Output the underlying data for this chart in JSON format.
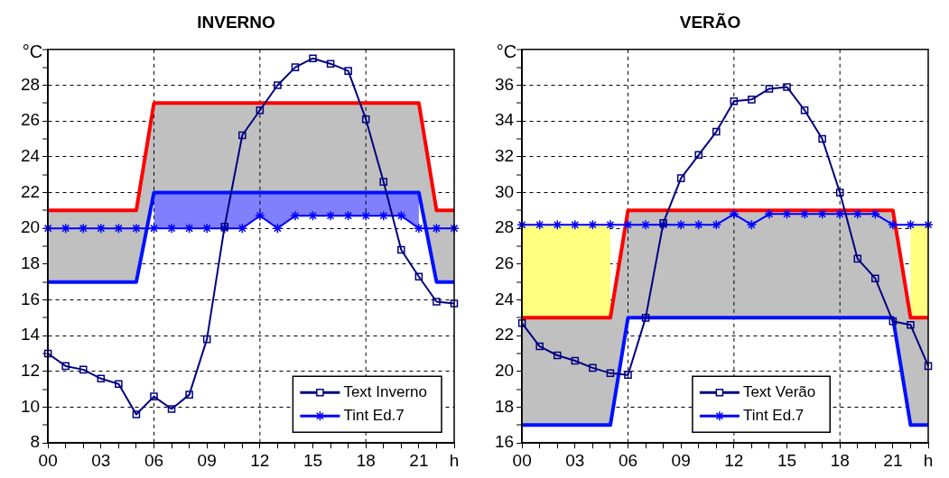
{
  "chart_data": [
    {
      "type": "line",
      "title": "INVERNO",
      "ylabel": "°C",
      "xlim": [
        0,
        23
      ],
      "ylim": [
        8,
        30
      ],
      "xticks": [
        {
          "value": 0,
          "label": "00"
        },
        {
          "value": 1,
          "label": null
        },
        {
          "value": 2,
          "label": null
        },
        {
          "value": 3,
          "label": "03"
        },
        {
          "value": 4,
          "label": null
        },
        {
          "value": 5,
          "label": null
        },
        {
          "value": 6,
          "label": "06"
        },
        {
          "value": 7,
          "label": null
        },
        {
          "value": 8,
          "label": null
        },
        {
          "value": 9,
          "label": "09"
        },
        {
          "value": 10,
          "label": null
        },
        {
          "value": 11,
          "label": null
        },
        {
          "value": 12,
          "label": "12"
        },
        {
          "value": 13,
          "label": null
        },
        {
          "value": 14,
          "label": null
        },
        {
          "value": 15,
          "label": "15"
        },
        {
          "value": 16,
          "label": null
        },
        {
          "value": 17,
          "label": null
        },
        {
          "value": 18,
          "label": "18"
        },
        {
          "value": 19,
          "label": null
        },
        {
          "value": 20,
          "label": null
        },
        {
          "value": 21,
          "label": "21"
        },
        {
          "value": 22,
          "label": null
        },
        {
          "value": 23,
          "label": "h"
        }
      ],
      "yticks": [
        8,
        {
          "value": 9,
          "label": null
        },
        10,
        {
          "value": 11,
          "label": null
        },
        12,
        {
          "value": 13,
          "label": null
        },
        14,
        {
          "value": 15,
          "label": null
        },
        16,
        {
          "value": 17,
          "label": null
        },
        18,
        {
          "value": 19,
          "label": null
        },
        20,
        {
          "value": 21,
          "label": null
        },
        22,
        {
          "value": 23,
          "label": null
        },
        24,
        {
          "value": 25,
          "label": null
        },
        26,
        {
          "value": 27,
          "label": null
        },
        28,
        {
          "value": 29,
          "label": null
        },
        {
          "value": 30,
          "label": null
        }
      ],
      "grid": "y",
      "legend": "bottom right",
      "ref_lines": [
        {
          "axis": "x",
          "value": 6,
          "color": "#000000",
          "line_style": "dashed"
        },
        {
          "axis": "x",
          "value": 12,
          "color": "#000000",
          "line_style": "dashed"
        },
        {
          "axis": "x",
          "value": 18,
          "color": "#000000",
          "line_style": "dashed"
        }
      ],
      "x": [
        0,
        1,
        2,
        3,
        4,
        5,
        6,
        7,
        8,
        9,
        10,
        11,
        12,
        13,
        14,
        15,
        16,
        17,
        18,
        19,
        20,
        21,
        22,
        23
      ],
      "series": [
        {
          "color": "#ff0000",
          "marker": "none",
          "values": [
            21,
            21,
            21,
            21,
            21,
            21,
            27,
            27,
            27,
            27,
            27,
            27,
            27,
            27,
            27,
            27,
            27,
            27,
            27,
            27,
            27,
            27,
            21,
            21
          ],
          "upper": [
            21,
            21,
            21,
            21,
            21,
            21,
            27,
            27,
            27,
            27,
            27,
            27,
            27,
            27,
            27,
            27,
            27,
            27,
            27,
            27,
            27,
            27,
            21,
            21
          ],
          "lower": [
            17,
            17,
            17,
            17,
            17,
            17,
            22,
            22,
            22,
            22,
            22,
            22,
            22,
            22,
            22,
            22,
            22,
            22,
            22,
            22,
            22,
            22,
            17,
            17
          ]
        },
        {
          "color": "#0010ff",
          "marker": "none",
          "values": [
            17,
            17,
            17,
            17,
            17,
            17,
            22,
            22,
            22,
            22,
            22,
            22,
            22,
            22,
            22,
            22,
            22,
            22,
            22,
            22,
            22,
            22,
            17,
            17
          ],
          "upper": [
            null,
            null,
            null,
            null,
            null,
            null,
            22,
            22,
            22,
            22,
            22,
            22,
            22,
            22,
            22,
            22,
            22,
            22,
            22,
            22,
            22,
            22,
            null,
            null
          ],
          "lower": [
            null,
            null,
            null,
            null,
            null,
            null,
            20,
            20,
            20,
            20,
            20,
            20,
            20.7,
            20,
            20.7,
            20.7,
            20.7,
            20.7,
            20.7,
            20.7,
            20.7,
            20,
            null,
            null
          ]
        },
        {
          "name": "Text Inverno",
          "color": "#000080",
          "marker": "square",
          "values": [
            13.0,
            12.3,
            12.1,
            11.6,
            11.3,
            9.6,
            10.6,
            9.9,
            10.7,
            13.8,
            20.1,
            25.2,
            26.6,
            28.0,
            29.0,
            29.5,
            29.2,
            28.8,
            26.1,
            22.6,
            18.8,
            17.3,
            15.9,
            15.8
          ]
        },
        {
          "name": "Tint Ed.7",
          "color": "#0000ff",
          "marker": "cross",
          "values": [
            20,
            20,
            20,
            20,
            20,
            20,
            20,
            20,
            20,
            20,
            20,
            20,
            20.7,
            20,
            20.7,
            20.7,
            20.7,
            20.7,
            20.7,
            20.7,
            20.7,
            20,
            20,
            20
          ]
        }
      ]
    },
    {
      "type": "line",
      "title": "VERÃO",
      "ylabel": "°C",
      "xlim": [
        0,
        23
      ],
      "ylim": [
        16,
        38
      ],
      "xticks": [
        {
          "value": 0,
          "label": "00"
        },
        {
          "value": 1,
          "label": null
        },
        {
          "value": 2,
          "label": null
        },
        {
          "value": 3,
          "label": "03"
        },
        {
          "value": 4,
          "label": null
        },
        {
          "value": 5,
          "label": null
        },
        {
          "value": 6,
          "label": "06"
        },
        {
          "value": 7,
          "label": null
        },
        {
          "value": 8,
          "label": null
        },
        {
          "value": 9,
          "label": "09"
        },
        {
          "value": 10,
          "label": null
        },
        {
          "value": 11,
          "label": null
        },
        {
          "value": 12,
          "label": "12"
        },
        {
          "value": 13,
          "label": null
        },
        {
          "value": 14,
          "label": null
        },
        {
          "value": 15,
          "label": "15"
        },
        {
          "value": 16,
          "label": null
        },
        {
          "value": 17,
          "label": null
        },
        {
          "value": 18,
          "label": "18"
        },
        {
          "value": 19,
          "label": null
        },
        {
          "value": 20,
          "label": null
        },
        {
          "value": 21,
          "label": "21"
        },
        {
          "value": 22,
          "label": null
        },
        {
          "value": 23,
          "label": "h"
        }
      ],
      "yticks": [
        16,
        {
          "value": 17,
          "label": null
        },
        18,
        {
          "value": 19,
          "label": null
        },
        20,
        {
          "value": 21,
          "label": null
        },
        22,
        {
          "value": 23,
          "label": null
        },
        24,
        {
          "value": 25,
          "label": null
        },
        26,
        {
          "value": 27,
          "label": null
        },
        28,
        {
          "value": 29,
          "label": null
        },
        30,
        {
          "value": 31,
          "label": null
        },
        32,
        {
          "value": 33,
          "label": null
        },
        34,
        {
          "value": 35,
          "label": null
        },
        36,
        {
          "value": 37,
          "label": null
        },
        {
          "value": 38,
          "label": null
        }
      ],
      "grid": "y",
      "legend": "bottom",
      "ref_lines": [
        {
          "axis": "x",
          "value": 6,
          "color": "#000000",
          "line_style": "dashed"
        },
        {
          "axis": "x",
          "value": 12,
          "color": "#000000",
          "line_style": "dashed"
        },
        {
          "axis": "x",
          "value": 18,
          "color": "#000000",
          "line_style": "dashed"
        }
      ],
      "x": [
        0,
        1,
        2,
        3,
        4,
        5,
        6,
        7,
        8,
        9,
        10,
        11,
        12,
        13,
        14,
        15,
        16,
        17,
        18,
        19,
        20,
        21,
        22,
        23
      ],
      "series": [
        {
          "color": "#ff0000",
          "marker": "none",
          "values": [
            23,
            23,
            23,
            23,
            23,
            23,
            29,
            29,
            29,
            29,
            29,
            29,
            29,
            29,
            29,
            29,
            29,
            29,
            29,
            29,
            29,
            29,
            23,
            23
          ],
          "upper": [
            23,
            23,
            23,
            23,
            23,
            23,
            29,
            29,
            29,
            29,
            29,
            29,
            29,
            29,
            29,
            29,
            29,
            29,
            29,
            29,
            29,
            29,
            23,
            23
          ],
          "lower": [
            17,
            17,
            17,
            17,
            17,
            17,
            23,
            23,
            23,
            23,
            23,
            23,
            23,
            23,
            23,
            23,
            23,
            23,
            23,
            23,
            23,
            23,
            17,
            17
          ]
        },
        {
          "color": "#0010ff",
          "marker": "none",
          "values": [
            17,
            17,
            17,
            17,
            17,
            17,
            23,
            23,
            23,
            23,
            23,
            23,
            23,
            23,
            23,
            23,
            23,
            23,
            23,
            23,
            23,
            23,
            17,
            17
          ]
        },
        {
          "name": "Text Verão",
          "color": "#000080",
          "marker": "square",
          "values": [
            22.7,
            21.4,
            20.9,
            20.6,
            20.2,
            19.9,
            19.8,
            23.0,
            28.3,
            30.8,
            32.1,
            33.4,
            35.1,
            35.2,
            35.8,
            35.9,
            34.6,
            33.0,
            30.0,
            26.3,
            25.2,
            22.8,
            22.6,
            20.3
          ]
        },
        {
          "name": "Tint Ed.7",
          "color": "#0000ff",
          "marker": "cross",
          "values": [
            28.2,
            28.2,
            28.2,
            28.2,
            28.2,
            28.2,
            28.2,
            28.2,
            28.2,
            28.2,
            28.2,
            28.2,
            28.8,
            28.2,
            28.8,
            28.8,
            28.8,
            28.8,
            28.8,
            28.8,
            28.8,
            28.2,
            28.2,
            28.2
          ],
          "upper": [
            28.2,
            28.2,
            28.2,
            28.2,
            28.2,
            28.2,
            null,
            null,
            null,
            null,
            null,
            null,
            null,
            null,
            null,
            null,
            null,
            null,
            null,
            null,
            null,
            null,
            28.2,
            28.2
          ],
          "lower": [
            23,
            23,
            23,
            23,
            23,
            23,
            null,
            null,
            null,
            null,
            null,
            null,
            null,
            null,
            null,
            null,
            null,
            null,
            null,
            null,
            null,
            null,
            23,
            23
          ]
        }
      ]
    }
  ]
}
